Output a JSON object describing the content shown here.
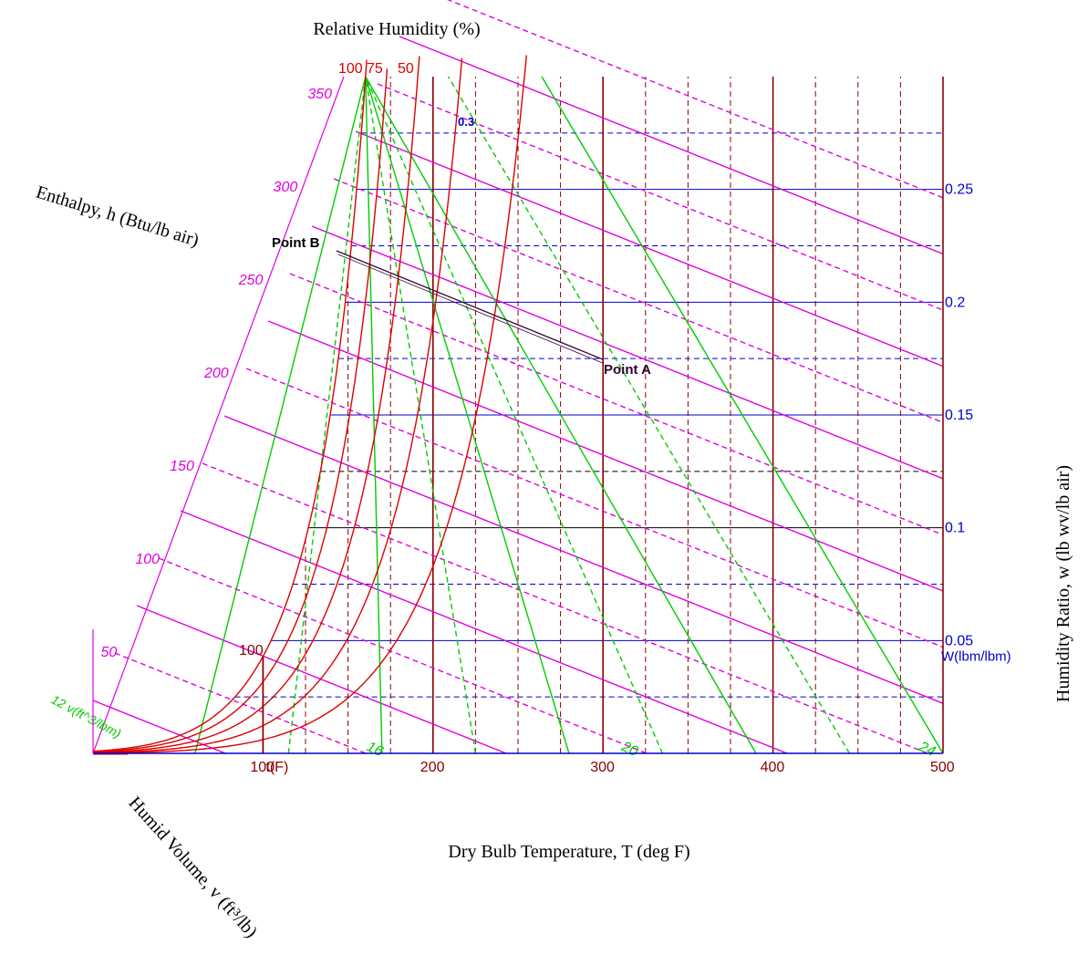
{
  "chart_data": {
    "type": "psychrometric",
    "title": "Relative Humidity (%)",
    "xlabel": "Dry Bulb Temperature, T (deg F)",
    "ylabel": "Humidity Ratio, w (lb wv/lb air)",
    "enthalpy_label": "Enthalpy, h (Btu/lb air)",
    "volume_label": "Humid Volume, v (ft³/lb)",
    "xlim": [
      0,
      500
    ],
    "ylim": [
      0,
      0.3
    ],
    "x_ticks": [
      100,
      200,
      300,
      400,
      500
    ],
    "x_tick_labels": [
      "100",
      "200",
      "300",
      "400",
      "500"
    ],
    "x_axis_note": "t(F)",
    "y_ticks": [
      0.05,
      0.1,
      0.15,
      0.2,
      0.25
    ],
    "y_tick_labels": [
      "0.05",
      "0.1",
      "0.15",
      "0.2",
      "0.25"
    ],
    "y_axis_note": "W(lbm/lbm)",
    "top_w_label": "0.3",
    "enthalpy_ticks": [
      50,
      100,
      150,
      200,
      250,
      300,
      350
    ],
    "enthalpy_tick_labels": [
      "50",
      "100",
      "150",
      "200",
      "250",
      "300",
      "350"
    ],
    "rh_labels": [
      "100",
      "75",
      "50"
    ],
    "inner_rh_label": "100",
    "volume_lines": [
      {
        "label": "16",
        "x_at_w0": 170
      },
      {
        "label": "20",
        "x_at_w0": 320
      },
      {
        "label": "24",
        "x_at_w0": 495
      }
    ],
    "volume_axis_label": "12 v(ft^3/lbm)",
    "points": [
      {
        "name": "Point A",
        "T": 300,
        "w": 0.175
      },
      {
        "name": "Point B",
        "T": 140,
        "w": 0.22
      }
    ],
    "grid": true,
    "colors": {
      "enthalpy": "#e000e0",
      "rh": "#dd0000",
      "volume": "#00cc00",
      "w_grid": "#0000cc",
      "t_grid": "#8b0000",
      "points": "#330033"
    }
  }
}
